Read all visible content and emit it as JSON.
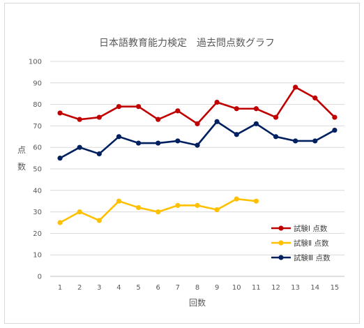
{
  "chart_data": {
    "type": "line",
    "title": "日本語教育能力検定　過去問点数グラフ",
    "xlabel": "回数",
    "ylabel": "点数",
    "ylabel_chars": [
      "点",
      "数"
    ],
    "categories": [
      "1",
      "2",
      "3",
      "4",
      "5",
      "6",
      "7",
      "8",
      "9",
      "10",
      "11",
      "12",
      "13",
      "14",
      "15"
    ],
    "y_ticks": [
      "0",
      "10",
      "20",
      "30",
      "40",
      "50",
      "60",
      "70",
      "80",
      "90",
      "100"
    ],
    "ylim": [
      0,
      100
    ],
    "grid": "horizontal",
    "legend_position": "bottom-right",
    "series": [
      {
        "name": "試験Ⅰ 点数",
        "color": "#c00000",
        "values": [
          76,
          73,
          74,
          79,
          79,
          73,
          77,
          71,
          81,
          78,
          78,
          74,
          88,
          83,
          74
        ]
      },
      {
        "name": "試験Ⅱ 点数",
        "color": "#ffc000",
        "values": [
          25,
          30,
          26,
          35,
          32,
          30,
          33,
          33,
          31,
          36,
          35,
          null,
          null,
          null,
          null
        ]
      },
      {
        "name": "試験Ⅲ 点数",
        "color": "#002060",
        "values": [
          55,
          60,
          57,
          65,
          62,
          62,
          63,
          61,
          72,
          66,
          71,
          65,
          63,
          63,
          68
        ]
      }
    ]
  }
}
